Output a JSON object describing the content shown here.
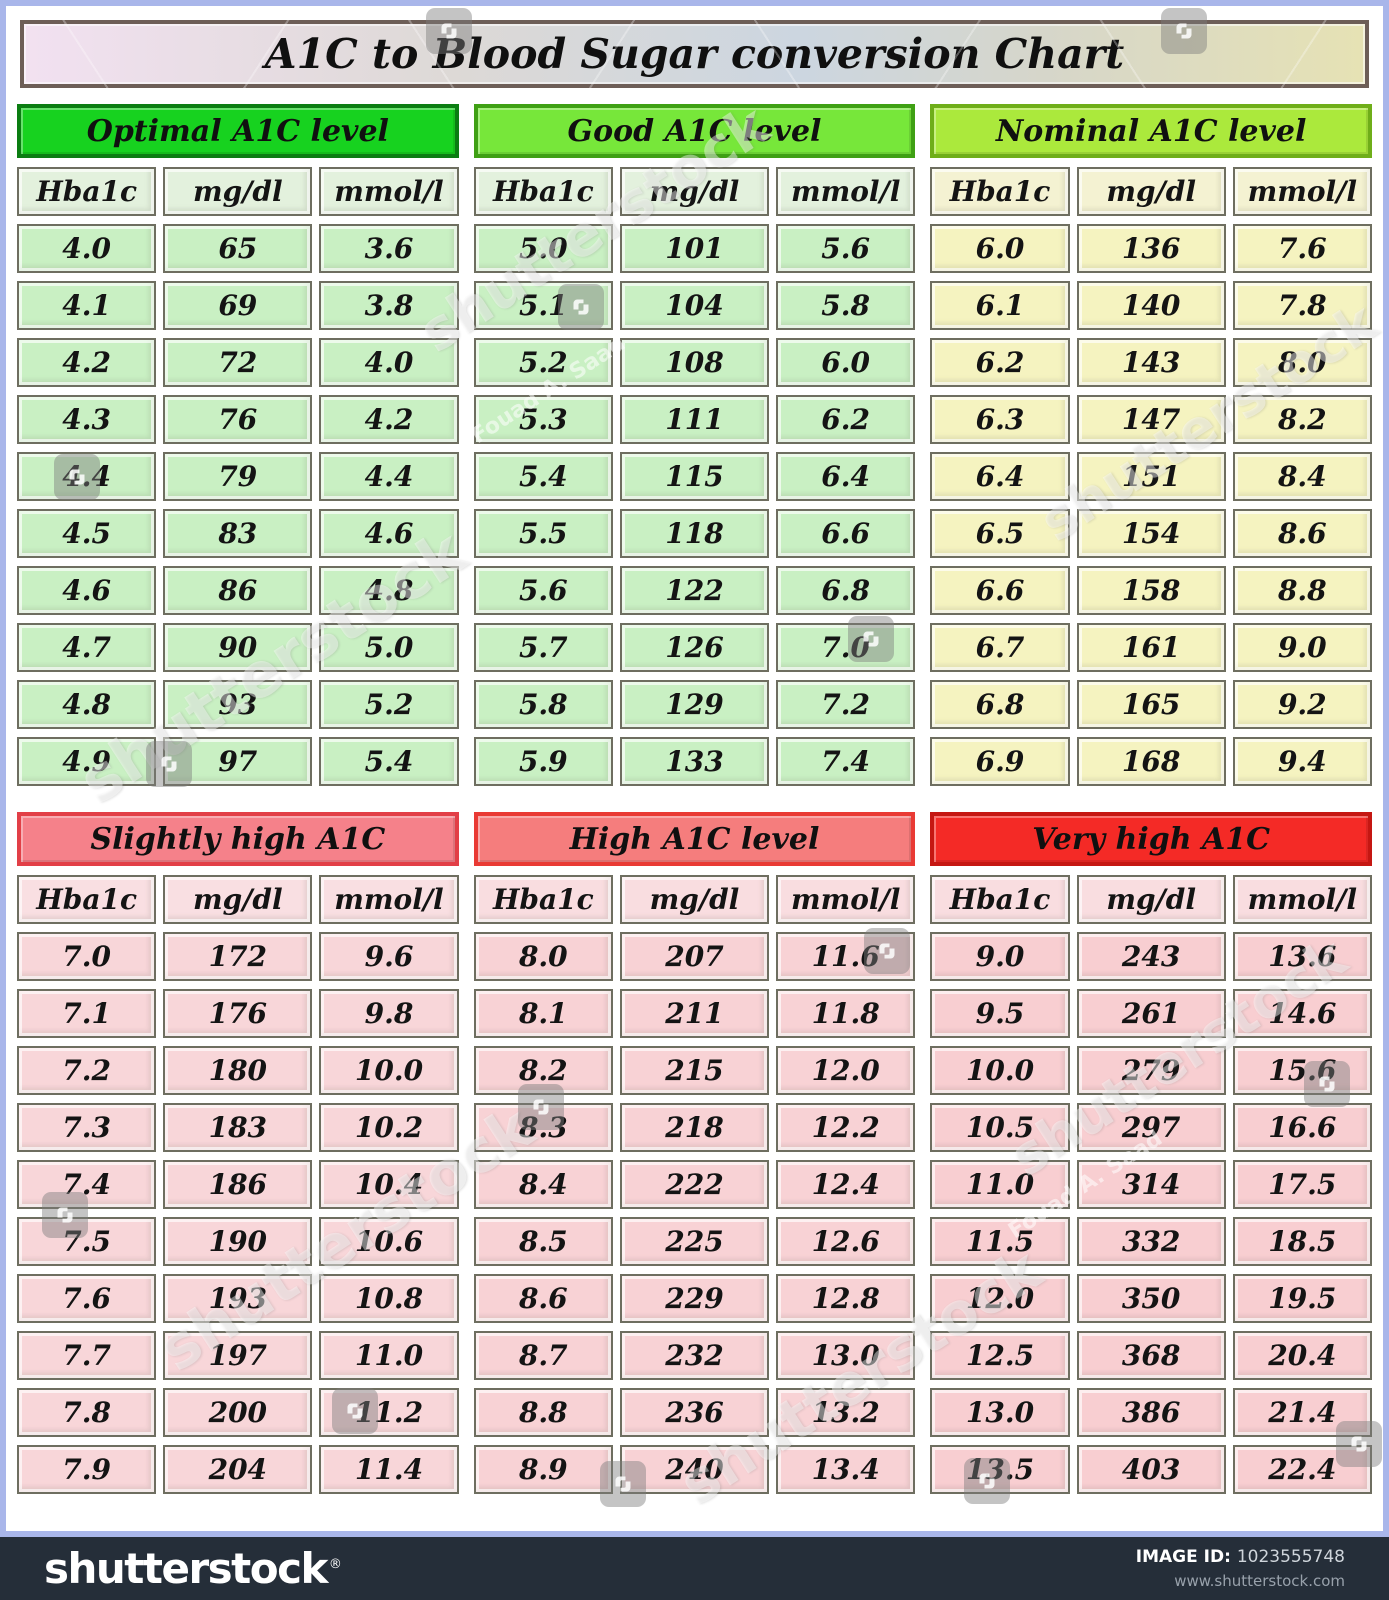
{
  "title": "A1C to Blood Sugar conversion Chart",
  "chart_data": {
    "type": "table",
    "title": "A1C to Blood Sugar conversion Chart",
    "columns": [
      "Hba1c",
      "mg/dl",
      "mmol/l"
    ],
    "groups": [
      {
        "title": "Optimal A1C level",
        "colors": {
          "header_bg": "#17d21f",
          "header_border": "#0b7d12",
          "cell_bg": "#c9f0c3",
          "head_cell_bg": "#e3f1dd"
        },
        "rows": [
          [
            "4.0",
            "65",
            "3.6"
          ],
          [
            "4.1",
            "69",
            "3.8"
          ],
          [
            "4.2",
            "72",
            "4.0"
          ],
          [
            "4.3",
            "76",
            "4.2"
          ],
          [
            "4.4",
            "79",
            "4.4"
          ],
          [
            "4.5",
            "83",
            "4.6"
          ],
          [
            "4.6",
            "86",
            "4.8"
          ],
          [
            "4.7",
            "90",
            "5.0"
          ],
          [
            "4.8",
            "93",
            "5.2"
          ],
          [
            "4.9",
            "97",
            "5.4"
          ]
        ]
      },
      {
        "title": "Good A1C level",
        "colors": {
          "header_bg": "#77e73a",
          "header_border": "#3fa014",
          "cell_bg": "#c9f0c3",
          "head_cell_bg": "#e3f1dd"
        },
        "rows": [
          [
            "5.0",
            "101",
            "5.6"
          ],
          [
            "5.1",
            "104",
            "5.8"
          ],
          [
            "5.2",
            "108",
            "6.0"
          ],
          [
            "5.3",
            "111",
            "6.2"
          ],
          [
            "5.4",
            "115",
            "6.4"
          ],
          [
            "5.5",
            "118",
            "6.6"
          ],
          [
            "5.6",
            "122",
            "6.8"
          ],
          [
            "5.7",
            "126",
            "7.0"
          ],
          [
            "5.8",
            "129",
            "7.2"
          ],
          [
            "5.9",
            "133",
            "7.4"
          ]
        ]
      },
      {
        "title": "Nominal A1C level",
        "colors": {
          "header_bg": "#abe93c",
          "header_border": "#6fae19",
          "cell_bg": "#f5f3c0",
          "head_cell_bg": "#f4f2d2"
        },
        "rows": [
          [
            "6.0",
            "136",
            "7.6"
          ],
          [
            "6.1",
            "140",
            "7.8"
          ],
          [
            "6.2",
            "143",
            "8.0"
          ],
          [
            "6.3",
            "147",
            "8.2"
          ],
          [
            "6.4",
            "151",
            "8.4"
          ],
          [
            "6.5",
            "154",
            "8.6"
          ],
          [
            "6.6",
            "158",
            "8.8"
          ],
          [
            "6.7",
            "161",
            "9.0"
          ],
          [
            "6.8",
            "165",
            "9.2"
          ],
          [
            "6.9",
            "168",
            "9.4"
          ]
        ]
      },
      {
        "title": "Slightly high A1C",
        "colors": {
          "header_bg": "#f5818a",
          "header_border": "#e23f47",
          "cell_bg": "#f8d6d9",
          "head_cell_bg": "#f9dfe2"
        },
        "rows": [
          [
            "7.0",
            "172",
            "9.6"
          ],
          [
            "7.1",
            "176",
            "9.8"
          ],
          [
            "7.2",
            "180",
            "10.0"
          ],
          [
            "7.3",
            "183",
            "10.2"
          ],
          [
            "7.4",
            "186",
            "10.4"
          ],
          [
            "7.5",
            "190",
            "10.6"
          ],
          [
            "7.6",
            "193",
            "10.8"
          ],
          [
            "7.7",
            "197",
            "11.0"
          ],
          [
            "7.8",
            "200",
            "11.2"
          ],
          [
            "7.9",
            "204",
            "11.4"
          ]
        ]
      },
      {
        "title": "High A1C level",
        "colors": {
          "header_bg": "#f57d7d",
          "header_border": "#e93a34",
          "cell_bg": "#f8d2d5",
          "head_cell_bg": "#f9dde0"
        },
        "rows": [
          [
            "8.0",
            "207",
            "11.6"
          ],
          [
            "8.1",
            "211",
            "11.8"
          ],
          [
            "8.2",
            "215",
            "12.0"
          ],
          [
            "8.3",
            "218",
            "12.2"
          ],
          [
            "8.4",
            "222",
            "12.4"
          ],
          [
            "8.5",
            "225",
            "12.6"
          ],
          [
            "8.6",
            "229",
            "12.8"
          ],
          [
            "8.7",
            "232",
            "13.0"
          ],
          [
            "8.8",
            "236",
            "13.2"
          ],
          [
            "8.9",
            "240",
            "13.4"
          ]
        ]
      },
      {
        "title": "Very high A1C",
        "colors": {
          "header_bg": "#f42a26",
          "header_border": "#c51712",
          "cell_bg": "#f8ced1",
          "head_cell_bg": "#f9dde0"
        },
        "rows": [
          [
            "9.0",
            "243",
            "13.6"
          ],
          [
            "9.5",
            "261",
            "14.6"
          ],
          [
            "10.0",
            "279",
            "15.6"
          ],
          [
            "10.5",
            "297",
            "16.6"
          ],
          [
            "11.0",
            "314",
            "17.5"
          ],
          [
            "11.5",
            "332",
            "18.5"
          ],
          [
            "12.0",
            "350",
            "19.5"
          ],
          [
            "12.5",
            "368",
            "20.4"
          ],
          [
            "13.0",
            "386",
            "21.4"
          ],
          [
            "13.5",
            "403",
            "22.4"
          ]
        ]
      }
    ]
  },
  "watermark": {
    "brand": "shutterstock",
    "author": "Fouad A. Saad"
  },
  "footer": {
    "logo": "shutterstock",
    "registered": "®",
    "image_id_label": "IMAGE ID:",
    "image_id": "1023555748",
    "url": "www.shutterstock.com"
  }
}
